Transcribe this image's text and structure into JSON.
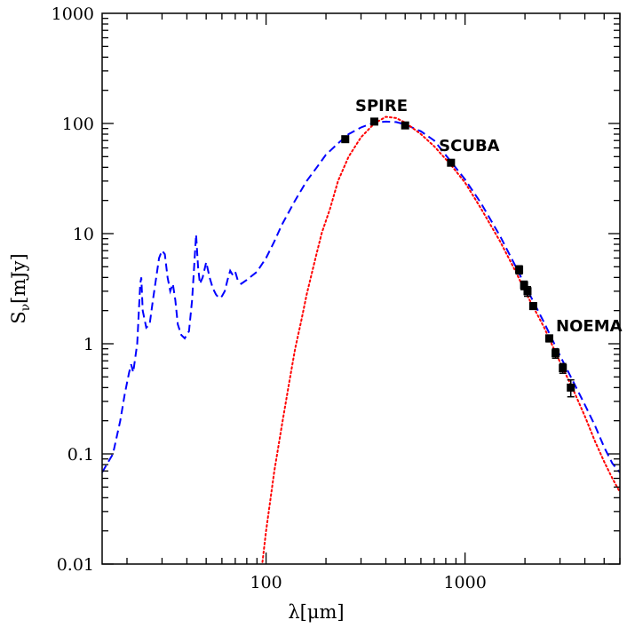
{
  "chart_data": {
    "type": "scatter",
    "title": "",
    "xlabel": "λ[μm]",
    "ylabel": "Sν[mJy]",
    "xscale": "log",
    "yscale": "log",
    "xlim": [
      15,
      6000
    ],
    "ylim": [
      0.01,
      1000
    ],
    "grid": false,
    "legend": "none",
    "x_ticks": [
      {
        "value": 100,
        "label": "100"
      },
      {
        "value": 1000,
        "label": "1000"
      }
    ],
    "y_ticks": [
      {
        "value": 0.01,
        "label": "0.01"
      },
      {
        "value": 0.1,
        "label": "0.1"
      },
      {
        "value": 1,
        "label": "1"
      },
      {
        "value": 10,
        "label": "10"
      },
      {
        "value": 100,
        "label": "100"
      },
      {
        "value": 1000,
        "label": "1000"
      }
    ],
    "annotations": [
      {
        "text": "SPIRE",
        "x": 380,
        "y": 130
      },
      {
        "text": "SCUBA",
        "x": 1050,
        "y": 56
      },
      {
        "text": "NOEMA",
        "x": 4200,
        "y": 1.3
      }
    ],
    "series": [
      {
        "style": "points",
        "color": "#000000",
        "points": [
          {
            "x": 250,
            "y": 72,
            "yerr": 4
          },
          {
            "x": 350,
            "y": 104,
            "yerr": 4
          },
          {
            "x": 500,
            "y": 96,
            "yerr": 4
          },
          {
            "x": 850,
            "y": 44,
            "yerr": 2
          },
          {
            "x": 1870,
            "y": 4.7,
            "yerr": 0.4
          },
          {
            "x": 1980,
            "y": 3.4,
            "yerr": 0.3
          },
          {
            "x": 2060,
            "y": 3.0,
            "yerr": 0.3
          },
          {
            "x": 2200,
            "y": 2.2,
            "yerr": 0.15
          },
          {
            "x": 2650,
            "y": 1.12,
            "yerr": 0.08
          },
          {
            "x": 2850,
            "y": 0.82,
            "yerr": 0.08
          },
          {
            "x": 3100,
            "y": 0.6,
            "yerr": 0.06
          },
          {
            "x": 3400,
            "y": 0.4,
            "yerr": 0.07
          }
        ]
      },
      {
        "style": "dashed",
        "color": "#0000ff",
        "points": [
          [
            15,
            0.068
          ],
          [
            17,
            0.1
          ],
          [
            18.5,
            0.2
          ],
          [
            19.5,
            0.35
          ],
          [
            20.5,
            0.55
          ],
          [
            21,
            0.65
          ],
          [
            21.5,
            0.55
          ],
          [
            22.5,
            1.0
          ],
          [
            23.3,
            3.5
          ],
          [
            23.6,
            4.0
          ],
          [
            24,
            2.0
          ],
          [
            25,
            1.4
          ],
          [
            26,
            1.5
          ],
          [
            27,
            2.5
          ],
          [
            29,
            6.0
          ],
          [
            30,
            7.0
          ],
          [
            31,
            6.5
          ],
          [
            32,
            4.0
          ],
          [
            33,
            3.0
          ],
          [
            34,
            3.5
          ],
          [
            35,
            2.5
          ],
          [
            36,
            1.5
          ],
          [
            37.5,
            1.2
          ],
          [
            39,
            1.12
          ],
          [
            41,
            1.3
          ],
          [
            42.5,
            2.5
          ],
          [
            43.5,
            5.0
          ],
          [
            44.5,
            9.8
          ],
          [
            45.5,
            5.0
          ],
          [
            46.5,
            3.5
          ],
          [
            48,
            4.0
          ],
          [
            50,
            5.5
          ],
          [
            52,
            4.0
          ],
          [
            54,
            3.2
          ],
          [
            56,
            2.8
          ],
          [
            58,
            2.6
          ],
          [
            60,
            2.7
          ],
          [
            62,
            3.0
          ],
          [
            64,
            3.8
          ],
          [
            66,
            4.6
          ],
          [
            68,
            4.2
          ],
          [
            70,
            4.5
          ],
          [
            72,
            3.8
          ],
          [
            75,
            3.5
          ],
          [
            80,
            3.8
          ],
          [
            90,
            4.5
          ],
          [
            100,
            6.0
          ],
          [
            110,
            8.5
          ],
          [
            120,
            12.0
          ],
          [
            140,
            20.0
          ],
          [
            160,
            30.0
          ],
          [
            180,
            40.0
          ],
          [
            200,
            52.0
          ],
          [
            230,
            66.0
          ],
          [
            260,
            80.0
          ],
          [
            300,
            92.0
          ],
          [
            350,
            102.0
          ],
          [
            400,
            104.0
          ],
          [
            450,
            103.0
          ],
          [
            500,
            98.0
          ],
          [
            600,
            85.0
          ],
          [
            700,
            70.0
          ],
          [
            850,
            45.0
          ],
          [
            1000,
            31.0
          ],
          [
            1200,
            19.0
          ],
          [
            1500,
            9.5
          ],
          [
            1800,
            5.0
          ],
          [
            2000,
            3.4
          ],
          [
            2500,
            1.55
          ],
          [
            3000,
            0.78
          ],
          [
            3500,
            0.45
          ],
          [
            4000,
            0.28
          ],
          [
            4500,
            0.18
          ],
          [
            5000,
            0.115
          ],
          [
            5500,
            0.082
          ],
          [
            6000,
            0.068
          ]
        ]
      },
      {
        "style": "dotted",
        "color": "#ff0000",
        "points": [
          [
            92,
            0.006
          ],
          [
            95,
            0.009
          ],
          [
            100,
            0.02
          ],
          [
            110,
            0.07
          ],
          [
            120,
            0.18
          ],
          [
            130,
            0.42
          ],
          [
            140,
            0.9
          ],
          [
            150,
            1.6
          ],
          [
            160,
            2.8
          ],
          [
            175,
            5.5
          ],
          [
            190,
            10.0
          ],
          [
            210,
            17.0
          ],
          [
            230,
            30.0
          ],
          [
            260,
            50.0
          ],
          [
            300,
            75.0
          ],
          [
            350,
            100.0
          ],
          [
            400,
            115.0
          ],
          [
            450,
            112.0
          ],
          [
            500,
            102.0
          ],
          [
            600,
            80.0
          ],
          [
            700,
            62.0
          ],
          [
            850,
            42.0
          ],
          [
            1000,
            29.0
          ],
          [
            1200,
            17.0
          ],
          [
            1500,
            8.5
          ],
          [
            1800,
            4.5
          ],
          [
            2000,
            3.0
          ],
          [
            2500,
            1.4
          ],
          [
            3000,
            0.68
          ],
          [
            3500,
            0.38
          ],
          [
            4000,
            0.22
          ],
          [
            4500,
            0.13
          ],
          [
            5000,
            0.085
          ],
          [
            5500,
            0.06
          ],
          [
            6000,
            0.045
          ]
        ]
      }
    ]
  }
}
